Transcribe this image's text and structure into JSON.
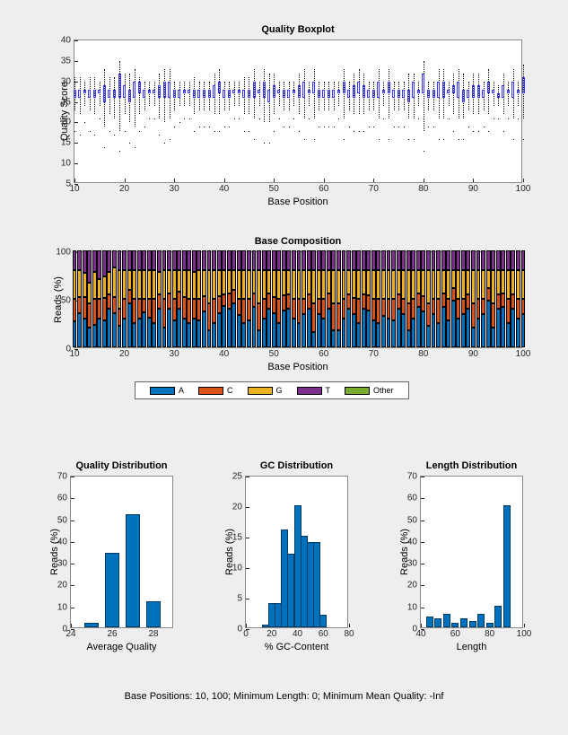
{
  "quality_boxplot": {
    "title": "Quality Boxplot",
    "xlabel": "Base Position",
    "ylabel": "Quality Score",
    "xlim": [
      10,
      100
    ],
    "ylim": [
      5,
      40
    ],
    "xticks": [
      10,
      20,
      30,
      40,
      50,
      60,
      70,
      80,
      90,
      100
    ],
    "yticks": [
      5,
      10,
      15,
      20,
      25,
      30,
      35,
      40
    ],
    "box_color": "#3838ff",
    "positions": [
      10,
      11,
      12,
      13,
      14,
      15,
      16,
      17,
      18,
      19,
      20,
      21,
      22,
      23,
      24,
      25,
      26,
      27,
      28,
      29,
      30,
      31,
      32,
      33,
      34,
      35,
      36,
      37,
      38,
      39,
      40,
      41,
      42,
      43,
      44,
      45,
      46,
      47,
      48,
      49,
      50,
      51,
      52,
      53,
      54,
      55,
      56,
      57,
      58,
      59,
      60,
      61,
      62,
      63,
      64,
      65,
      66,
      67,
      68,
      69,
      70,
      71,
      72,
      73,
      74,
      75,
      76,
      77,
      78,
      79,
      80,
      81,
      82,
      83,
      84,
      85,
      86,
      87,
      88,
      89,
      90,
      91,
      92,
      93,
      94,
      95,
      96,
      97,
      98,
      99,
      100
    ],
    "q1": [
      26,
      26,
      27,
      26,
      26,
      27,
      25,
      26,
      26,
      26,
      26,
      25,
      26,
      27,
      26,
      27,
      27,
      26,
      26,
      26,
      26,
      26,
      27,
      27,
      26,
      26,
      26,
      26,
      26,
      27,
      26,
      26,
      27,
      27,
      26,
      26,
      26,
      27,
      26,
      25,
      26,
      27,
      26,
      26,
      27,
      26,
      26,
      27,
      27,
      26,
      26,
      26,
      26,
      27,
      27,
      26,
      26,
      27,
      26,
      26,
      26,
      26,
      27,
      27,
      26,
      26,
      26,
      25,
      26,
      27,
      27,
      26,
      26,
      26,
      26,
      27,
      27,
      26,
      25,
      26,
      26,
      26,
      26,
      27,
      27,
      26,
      26,
      27,
      26,
      27,
      27
    ],
    "q3": [
      28,
      28,
      28,
      28,
      28,
      28,
      29,
      28,
      28,
      32,
      29,
      28,
      30,
      30,
      28,
      28,
      28,
      29,
      30,
      30,
      28,
      28,
      28,
      28,
      28,
      28,
      28,
      28,
      29,
      30,
      28,
      28,
      28,
      28,
      28,
      28,
      30,
      28,
      30,
      28,
      29,
      28,
      28,
      28,
      28,
      29,
      30,
      28,
      30,
      28,
      28,
      28,
      28,
      28,
      30,
      28,
      29,
      30,
      29,
      28,
      28,
      30,
      28,
      30,
      28,
      28,
      28,
      28,
      30,
      28,
      32,
      28,
      28,
      30,
      30,
      28,
      29,
      30,
      28,
      28,
      29,
      29,
      28,
      30,
      28,
      27,
      29,
      28,
      30,
      28,
      31
    ],
    "median": [
      27,
      27,
      27,
      27,
      27,
      27,
      27,
      27,
      27,
      28,
      27,
      27,
      28,
      28,
      27,
      27,
      27,
      27,
      28,
      27,
      27,
      27,
      27,
      27,
      27,
      27,
      27,
      27,
      27,
      28,
      27,
      27,
      27,
      27,
      27,
      27,
      28,
      27,
      28,
      27,
      27,
      27,
      27,
      27,
      27,
      27,
      28,
      27,
      28,
      27,
      27,
      27,
      27,
      27,
      28,
      27,
      27,
      28,
      27,
      27,
      27,
      28,
      27,
      28,
      27,
      27,
      27,
      27,
      28,
      27,
      29,
      27,
      27,
      28,
      28,
      27,
      28,
      28,
      27,
      27,
      27,
      27,
      27,
      28,
      27,
      27,
      27,
      27,
      28,
      27,
      29
    ],
    "low": [
      23,
      22,
      24,
      23,
      22,
      24,
      19,
      22,
      21,
      18,
      22,
      20,
      19,
      22,
      23,
      24,
      24,
      21,
      20,
      21,
      23,
      24,
      24,
      24,
      22,
      23,
      23,
      23,
      22,
      22,
      23,
      23,
      24,
      24,
      22,
      22,
      21,
      24,
      20,
      20,
      22,
      24,
      23,
      23,
      24,
      22,
      21,
      24,
      21,
      23,
      23,
      23,
      23,
      24,
      21,
      23,
      22,
      22,
      22,
      23,
      23,
      21,
      24,
      21,
      23,
      23,
      23,
      21,
      21,
      24,
      18,
      23,
      23,
      21,
      21,
      24,
      22,
      21,
      21,
      23,
      22,
      22,
      23,
      22,
      24,
      24,
      22,
      24,
      21,
      24,
      21
    ],
    "high": [
      31,
      31,
      30,
      31,
      31,
      30,
      33,
      31,
      31,
      35,
      32,
      32,
      33,
      31,
      30,
      30,
      30,
      32,
      33,
      33,
      30,
      30,
      30,
      30,
      31,
      30,
      30,
      30,
      32,
      33,
      30,
      30,
      30,
      30,
      31,
      31,
      33,
      30,
      33,
      32,
      32,
      30,
      30,
      30,
      30,
      32,
      33,
      30,
      33,
      30,
      30,
      30,
      30,
      30,
      33,
      30,
      32,
      33,
      32,
      30,
      30,
      33,
      30,
      33,
      30,
      30,
      30,
      32,
      32,
      30,
      35,
      30,
      30,
      33,
      33,
      30,
      32,
      33,
      32,
      30,
      32,
      32,
      30,
      33,
      30,
      29,
      32,
      30,
      33,
      30,
      34
    ],
    "outliers_low": [
      18,
      17,
      20,
      18,
      17,
      21,
      14,
      18,
      17,
      13,
      18,
      15,
      14,
      18,
      19,
      21,
      21,
      17,
      15,
      16,
      19,
      20,
      21,
      21,
      18,
      19,
      19,
      19,
      18,
      18,
      19,
      19,
      21,
      21,
      18,
      18,
      16,
      21,
      15,
      15,
      18,
      21,
      19,
      19,
      21,
      18,
      16,
      21,
      16,
      19,
      19,
      19,
      19,
      21,
      16,
      19,
      18,
      18,
      18,
      19,
      19,
      16,
      21,
      16,
      19,
      19,
      19,
      16,
      16,
      21,
      13,
      19,
      19,
      16,
      16,
      21,
      18,
      16,
      16,
      19,
      18,
      18,
      19,
      18,
      21,
      21,
      18,
      21,
      16,
      21,
      16
    ]
  },
  "base_composition": {
    "title": "Base Composition",
    "xlabel": "Base Position",
    "ylabel": "Reads (%)",
    "xlim": [
      10,
      100
    ],
    "ylim": [
      0,
      100
    ],
    "xticks": [
      10,
      20,
      30,
      40,
      50,
      60,
      70,
      80,
      90,
      100
    ],
    "yticks": [
      0,
      50,
      100
    ],
    "colors": {
      "A": "#0072bd",
      "C": "#d95319",
      "G": "#edb120",
      "T": "#7e2f8e",
      "Other": "#77ac30"
    },
    "legend_labels": [
      "A",
      "C",
      "G",
      "T",
      "Other"
    ],
    "positions": [
      10,
      11,
      12,
      13,
      14,
      15,
      16,
      17,
      18,
      19,
      20,
      21,
      22,
      23,
      24,
      25,
      26,
      27,
      28,
      29,
      30,
      31,
      32,
      33,
      34,
      35,
      36,
      37,
      38,
      39,
      40,
      41,
      42,
      43,
      44,
      45,
      46,
      47,
      48,
      49,
      50,
      51,
      52,
      53,
      54,
      55,
      56,
      57,
      58,
      59,
      60,
      61,
      62,
      63,
      64,
      65,
      66,
      67,
      68,
      69,
      70,
      71,
      72,
      73,
      74,
      75,
      76,
      77,
      78,
      79,
      80,
      81,
      82,
      83,
      84,
      85,
      86,
      87,
      88,
      89,
      90,
      91,
      92,
      93,
      94,
      95,
      96,
      97,
      98,
      99,
      100
    ],
    "A": [
      27,
      35,
      30,
      20,
      23,
      30,
      28,
      40,
      35,
      22,
      30,
      45,
      25,
      30,
      36,
      31,
      25,
      40,
      20,
      40,
      28,
      40,
      30,
      25,
      30,
      28,
      37,
      18,
      25,
      35,
      43,
      40,
      45,
      33,
      25,
      28,
      42,
      18,
      30,
      40,
      35,
      25,
      38,
      40,
      30,
      25,
      34,
      40,
      16,
      34,
      30,
      40,
      18,
      18,
      30,
      40,
      34,
      25,
      40,
      38,
      28,
      25,
      32,
      30,
      28,
      40,
      34,
      18,
      30,
      42,
      37,
      22,
      34,
      25,
      42,
      28,
      48,
      30,
      34,
      40,
      20,
      30,
      34,
      48,
      20,
      40,
      42,
      25,
      40,
      30,
      34
    ],
    "C": [
      23,
      17,
      22,
      25,
      27,
      20,
      23,
      15,
      17,
      18,
      20,
      14,
      25,
      20,
      14,
      19,
      25,
      15,
      30,
      16,
      22,
      17,
      22,
      25,
      20,
      22,
      16,
      27,
      25,
      18,
      12,
      16,
      14,
      17,
      25,
      22,
      14,
      27,
      20,
      16,
      17,
      25,
      16,
      15,
      20,
      25,
      16,
      15,
      29,
      16,
      20,
      16,
      27,
      27,
      20,
      15,
      17,
      25,
      15,
      16,
      22,
      25,
      18,
      20,
      22,
      15,
      16,
      27,
      20,
      14,
      16,
      23,
      16,
      25,
      14,
      22,
      13,
      20,
      16,
      15,
      25,
      20,
      16,
      13,
      25,
      15,
      14,
      25,
      15,
      20,
      16
    ],
    "G": [
      30,
      28,
      25,
      22,
      28,
      20,
      22,
      23,
      30,
      40,
      30,
      21,
      30,
      30,
      30,
      30,
      30,
      23,
      30,
      24,
      30,
      23,
      28,
      30,
      28,
      30,
      27,
      35,
      30,
      27,
      25,
      24,
      21,
      30,
      30,
      30,
      24,
      35,
      30,
      24,
      28,
      30,
      26,
      25,
      30,
      30,
      30,
      25,
      35,
      30,
      30,
      24,
      35,
      35,
      30,
      25,
      29,
      30,
      25,
      26,
      30,
      30,
      30,
      30,
      30,
      25,
      30,
      35,
      30,
      24,
      27,
      35,
      30,
      30,
      24,
      30,
      19,
      30,
      30,
      25,
      35,
      30,
      30,
      19,
      35,
      25,
      24,
      30,
      25,
      30,
      30
    ],
    "T": [
      20,
      20,
      23,
      33,
      22,
      30,
      27,
      22,
      18,
      20,
      20,
      20,
      20,
      20,
      20,
      20,
      20,
      22,
      20,
      20,
      20,
      20,
      20,
      20,
      22,
      20,
      20,
      20,
      20,
      20,
      20,
      20,
      20,
      20,
      20,
      20,
      20,
      20,
      20,
      20,
      20,
      20,
      20,
      20,
      20,
      20,
      20,
      20,
      20,
      20,
      20,
      20,
      20,
      20,
      20,
      20,
      20,
      20,
      20,
      20,
      20,
      20,
      20,
      20,
      20,
      20,
      20,
      20,
      20,
      20,
      20,
      20,
      20,
      20,
      20,
      20,
      20,
      20,
      20,
      20,
      20,
      20,
      20,
      20,
      20,
      20,
      20,
      20,
      20,
      20,
      20
    ],
    "Other": [
      0,
      0,
      0,
      0,
      0,
      0,
      0,
      0,
      0,
      0,
      0,
      0,
      0,
      0,
      0,
      0,
      0,
      0,
      0,
      0,
      0,
      0,
      0,
      0,
      0,
      0,
      0,
      0,
      0,
      0,
      0,
      0,
      0,
      0,
      0,
      0,
      0,
      0,
      0,
      0,
      0,
      0,
      0,
      0,
      0,
      0,
      0,
      0,
      0,
      0,
      0,
      0,
      0,
      0,
      0,
      0,
      0,
      0,
      0,
      0,
      0,
      0,
      0,
      0,
      0,
      0,
      0,
      0,
      0,
      0,
      0,
      0,
      0,
      0,
      0,
      0,
      0,
      0,
      0,
      0,
      0,
      0,
      0,
      0,
      0,
      0,
      0,
      0,
      0,
      0,
      0
    ]
  },
  "quality_dist": {
    "title": "Quality Distribution",
    "xlabel": "Average Quality",
    "ylabel": "Reads (%)",
    "xlim": [
      24,
      29
    ],
    "ylim": [
      0,
      70
    ],
    "xticks": [
      24,
      26,
      28
    ],
    "yticks": [
      0,
      10,
      20,
      30,
      40,
      50,
      60,
      70
    ],
    "bar_color": "#0072bd",
    "x": [
      25,
      26,
      27,
      28
    ],
    "y": [
      2,
      34,
      52,
      12
    ]
  },
  "gc_dist": {
    "title": "GC Distribution",
    "xlabel": "% GC-Content",
    "ylabel": "Reads (%)",
    "xlim": [
      0,
      80
    ],
    "ylim": [
      0,
      25
    ],
    "xticks": [
      0,
      20,
      40,
      60,
      80
    ],
    "yticks": [
      0,
      5,
      10,
      15,
      20,
      25
    ],
    "bar_color": "#0072bd",
    "x": [
      15,
      20,
      25,
      30,
      35,
      40,
      45,
      50,
      55,
      60
    ],
    "y": [
      0.5,
      4,
      4,
      16,
      12,
      20,
      15,
      14,
      14,
      2
    ]
  },
  "length_dist": {
    "title": "Length Distribution",
    "xlabel": "Length",
    "ylabel": "Reads (%)",
    "xlim": [
      40,
      100
    ],
    "ylim": [
      0,
      70
    ],
    "xticks": [
      40,
      60,
      80,
      100
    ],
    "yticks": [
      0,
      10,
      20,
      30,
      40,
      50,
      60,
      70
    ],
    "bar_color": "#0072bd",
    "x": [
      45,
      50,
      55,
      60,
      65,
      70,
      75,
      80,
      85,
      90
    ],
    "y": [
      5,
      4,
      6,
      2,
      4,
      3,
      6,
      2,
      10,
      56
    ]
  },
  "footer": "Base Positions: 10, 100;   Minimum Length: 0;   Minimum Mean Quality: -Inf"
}
